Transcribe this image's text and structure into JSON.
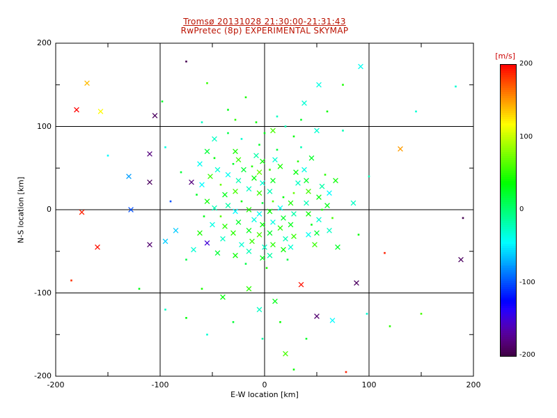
{
  "colors": {
    "background": "#ffffff",
    "frame": "#000000",
    "axis_text": "#000000",
    "title": "#bb1100",
    "colorbar_label": "#cc0000"
  },
  "chart_data": {
    "type": "scatter",
    "title_line1": "Tromsø 20131028 21:30:00-21:31:43",
    "title_line2": "RwPretec (8p) EXPERIMENTAL SKYMAP",
    "xlabel": "E-W location [km]",
    "ylabel": "N-S location [km]",
    "xlim": [
      -200,
      200
    ],
    "ylim": [
      -200,
      200
    ],
    "xticks": [
      -200,
      -100,
      0,
      100,
      200
    ],
    "yticks": [
      -200,
      -100,
      0,
      100,
      200
    ],
    "grid": true,
    "colorbar": {
      "label": "[m/s]",
      "min": -200,
      "max": 200,
      "ticks": [
        200,
        100,
        0,
        -100,
        -200
      ]
    },
    "point_fields": [
      "x_km",
      "y_km",
      "velocity_ms",
      "marker"
    ],
    "marker_types": {
      "0": "dot",
      "1": "x"
    },
    "points": [
      [
        -75,
        178,
        -195,
        0
      ],
      [
        92,
        172,
        -40,
        1
      ],
      [
        52,
        150,
        -35,
        1
      ],
      [
        75,
        150,
        45,
        0
      ],
      [
        183,
        148,
        -30,
        0
      ],
      [
        -170,
        152,
        140,
        1
      ],
      [
        -55,
        152,
        55,
        0
      ],
      [
        -180,
        120,
        200,
        1
      ],
      [
        -157,
        118,
        120,
        1
      ],
      [
        -105,
        113,
        -190,
        1
      ],
      [
        -98,
        130,
        25,
        0
      ],
      [
        145,
        118,
        -30,
        0
      ],
      [
        60,
        118,
        40,
        0
      ],
      [
        38,
        128,
        -30,
        1
      ],
      [
        -18,
        135,
        45,
        0
      ],
      [
        -35,
        120,
        30,
        0
      ],
      [
        -60,
        105,
        -25,
        0
      ],
      [
        12,
        112,
        -25,
        0
      ],
      [
        35,
        108,
        25,
        0
      ],
      [
        20,
        100,
        -20,
        0
      ],
      [
        -8,
        105,
        40,
        0
      ],
      [
        -28,
        108,
        50,
        0
      ],
      [
        50,
        95,
        -30,
        1
      ],
      [
        0,
        92,
        30,
        0
      ],
      [
        -35,
        92,
        15,
        0
      ],
      [
        28,
        88,
        35,
        0
      ],
      [
        -48,
        85,
        -25,
        1
      ],
      [
        -22,
        85,
        -30,
        0
      ],
      [
        -5,
        78,
        25,
        0
      ],
      [
        35,
        75,
        -20,
        0
      ],
      [
        130,
        73,
        150,
        1
      ],
      [
        -110,
        67,
        -180,
        1
      ],
      [
        75,
        95,
        -20,
        0
      ],
      [
        -95,
        75,
        -35,
        0
      ],
      [
        12,
        72,
        20,
        0
      ],
      [
        -28,
        70,
        45,
        1
      ],
      [
        -150,
        65,
        -45,
        0
      ],
      [
        -130,
        40,
        -75,
        1
      ],
      [
        -110,
        33,
        -190,
        1
      ],
      [
        -70,
        33,
        -180,
        1
      ],
      [
        8,
        95,
        60,
        1
      ],
      [
        -62,
        55,
        -40,
        1
      ],
      [
        -55,
        70,
        20,
        1
      ],
      [
        -48,
        62,
        35,
        0
      ],
      [
        -45,
        48,
        -30,
        1
      ],
      [
        -52,
        40,
        55,
        1
      ],
      [
        -80,
        45,
        20,
        0
      ],
      [
        -35,
        42,
        -40,
        1
      ],
      [
        -30,
        55,
        25,
        0
      ],
      [
        -25,
        60,
        55,
        1
      ],
      [
        -12,
        52,
        50,
        0
      ],
      [
        -8,
        65,
        -15,
        1
      ],
      [
        -2,
        58,
        40,
        1
      ],
      [
        -5,
        45,
        70,
        1
      ],
      [
        5,
        48,
        55,
        0
      ],
      [
        10,
        60,
        -30,
        1
      ],
      [
        15,
        52,
        45,
        1
      ],
      [
        32,
        58,
        50,
        0
      ],
      [
        38,
        48,
        -35,
        1
      ],
      [
        45,
        62,
        25,
        1
      ],
      [
        58,
        42,
        50,
        0
      ],
      [
        68,
        35,
        40,
        1
      ],
      [
        100,
        40,
        -20,
        0
      ],
      [
        -20,
        48,
        20,
        1
      ],
      [
        30,
        45,
        35,
        1
      ],
      [
        -60,
        30,
        -45,
        1
      ],
      [
        -65,
        18,
        25,
        0
      ],
      [
        -55,
        10,
        40,
        1
      ],
      [
        -38,
        18,
        30,
        1
      ],
      [
        -42,
        30,
        70,
        0
      ],
      [
        -25,
        35,
        -20,
        1
      ],
      [
        -28,
        22,
        60,
        1
      ],
      [
        -22,
        10,
        35,
        0
      ],
      [
        -15,
        25,
        -25,
        1
      ],
      [
        -10,
        38,
        35,
        1
      ],
      [
        -2,
        32,
        -30,
        1
      ],
      [
        -5,
        20,
        55,
        1
      ],
      [
        -2,
        8,
        20,
        0
      ],
      [
        8,
        35,
        30,
        1
      ],
      [
        5,
        22,
        -20,
        1
      ],
      [
        18,
        15,
        35,
        0
      ],
      [
        8,
        10,
        65,
        0
      ],
      [
        25,
        8,
        45,
        1
      ],
      [
        28,
        20,
        70,
        0
      ],
      [
        32,
        32,
        -25,
        1
      ],
      [
        40,
        35,
        25,
        1
      ],
      [
        42,
        22,
        60,
        1
      ],
      [
        52,
        15,
        35,
        1
      ],
      [
        55,
        28,
        -15,
        1
      ],
      [
        62,
        20,
        -45,
        1
      ],
      [
        85,
        8,
        -25,
        1
      ],
      [
        -90,
        10,
        -100,
        0
      ],
      [
        -48,
        2,
        -20,
        1
      ],
      [
        -35,
        5,
        -15,
        1
      ],
      [
        -15,
        0,
        45,
        1
      ],
      [
        5,
        -2,
        40,
        1
      ],
      [
        15,
        2,
        -40,
        1
      ],
      [
        40,
        8,
        -20,
        1
      ],
      [
        60,
        5,
        30,
        1
      ],
      [
        55,
        0,
        45,
        0
      ],
      [
        -128,
        0,
        -100,
        1
      ],
      [
        -175,
        -3,
        190,
        1
      ],
      [
        -58,
        -8,
        30,
        0
      ],
      [
        -50,
        -18,
        -35,
        1
      ],
      [
        -62,
        -28,
        45,
        1
      ],
      [
        -42,
        -8,
        65,
        0
      ],
      [
        -38,
        -20,
        50,
        1
      ],
      [
        -28,
        -2,
        -45,
        1
      ],
      [
        -25,
        -15,
        25,
        1
      ],
      [
        -30,
        -28,
        50,
        1
      ],
      [
        -10,
        -12,
        -35,
        1
      ],
      [
        -15,
        -25,
        30,
        1
      ],
      [
        -5,
        -5,
        -40,
        1
      ],
      [
        -2,
        -18,
        35,
        1
      ],
      [
        8,
        -15,
        -35,
        1
      ],
      [
        5,
        -28,
        25,
        1
      ],
      [
        18,
        -10,
        25,
        1
      ],
      [
        15,
        -22,
        50,
        1
      ],
      [
        28,
        -5,
        -15,
        1
      ],
      [
        25,
        -18,
        30,
        1
      ],
      [
        42,
        -5,
        40,
        1
      ],
      [
        45,
        -18,
        30,
        0
      ],
      [
        52,
        -12,
        -30,
        1
      ],
      [
        65,
        -10,
        60,
        0
      ],
      [
        62,
        -25,
        -25,
        1
      ],
      [
        90,
        -30,
        35,
        0
      ],
      [
        -85,
        -25,
        -60,
        1
      ],
      [
        -95,
        -38,
        -60,
        1
      ],
      [
        190,
        -10,
        -195,
        0
      ],
      [
        -55,
        -40,
        -150,
        1
      ],
      [
        -45,
        -52,
        20,
        1
      ],
      [
        -40,
        -35,
        -25,
        1
      ],
      [
        -22,
        -42,
        -30,
        1
      ],
      [
        -28,
        -55,
        40,
        1
      ],
      [
        -18,
        -65,
        15,
        0
      ],
      [
        -15,
        -50,
        -20,
        1
      ],
      [
        -12,
        -38,
        55,
        1
      ],
      [
        -5,
        -30,
        60,
        1
      ],
      [
        0,
        -45,
        -25,
        1
      ],
      [
        -2,
        -58,
        30,
        1
      ],
      [
        5,
        -55,
        -15,
        1
      ],
      [
        8,
        -42,
        50,
        1
      ],
      [
        20,
        -35,
        -20,
        1
      ],
      [
        18,
        -48,
        40,
        1
      ],
      [
        22,
        -60,
        15,
        0
      ],
      [
        25,
        -45,
        -30,
        1
      ],
      [
        28,
        -32,
        55,
        1
      ],
      [
        42,
        -30,
        -40,
        1
      ],
      [
        48,
        -42,
        55,
        1
      ],
      [
        50,
        -28,
        20,
        1
      ],
      [
        70,
        -45,
        25,
        1
      ],
      [
        -68,
        -48,
        -30,
        1
      ],
      [
        -110,
        -42,
        -185,
        1
      ],
      [
        -160,
        -45,
        195,
        1
      ],
      [
        115,
        -52,
        190,
        0
      ],
      [
        188,
        -60,
        -190,
        1
      ],
      [
        -75,
        -60,
        15,
        0
      ],
      [
        2,
        -70,
        45,
        0
      ],
      [
        -60,
        -95,
        45,
        0
      ],
      [
        -40,
        -105,
        35,
        1
      ],
      [
        -15,
        -95,
        50,
        1
      ],
      [
        10,
        -110,
        30,
        1
      ],
      [
        -5,
        -120,
        -25,
        1
      ],
      [
        15,
        -135,
        40,
        0
      ],
      [
        -30,
        -135,
        20,
        0
      ],
      [
        -55,
        -150,
        -30,
        0
      ],
      [
        40,
        -155,
        25,
        0
      ],
      [
        -2,
        -155,
        -15,
        0
      ],
      [
        -75,
        -130,
        35,
        0
      ],
      [
        -95,
        -120,
        -25,
        0
      ],
      [
        -120,
        -95,
        30,
        0
      ],
      [
        -185,
        -85,
        185,
        0
      ],
      [
        88,
        -88,
        -190,
        1
      ],
      [
        35,
        -90,
        195,
        1
      ],
      [
        50,
        -128,
        -185,
        1
      ],
      [
        65,
        -133,
        -45,
        1
      ],
      [
        20,
        -173,
        60,
        1
      ],
      [
        78,
        -195,
        190,
        0
      ],
      [
        28,
        -192,
        40,
        0
      ],
      [
        98,
        -125,
        -30,
        0
      ],
      [
        150,
        -125,
        60,
        0
      ],
      [
        120,
        -140,
        50,
        0
      ]
    ]
  }
}
